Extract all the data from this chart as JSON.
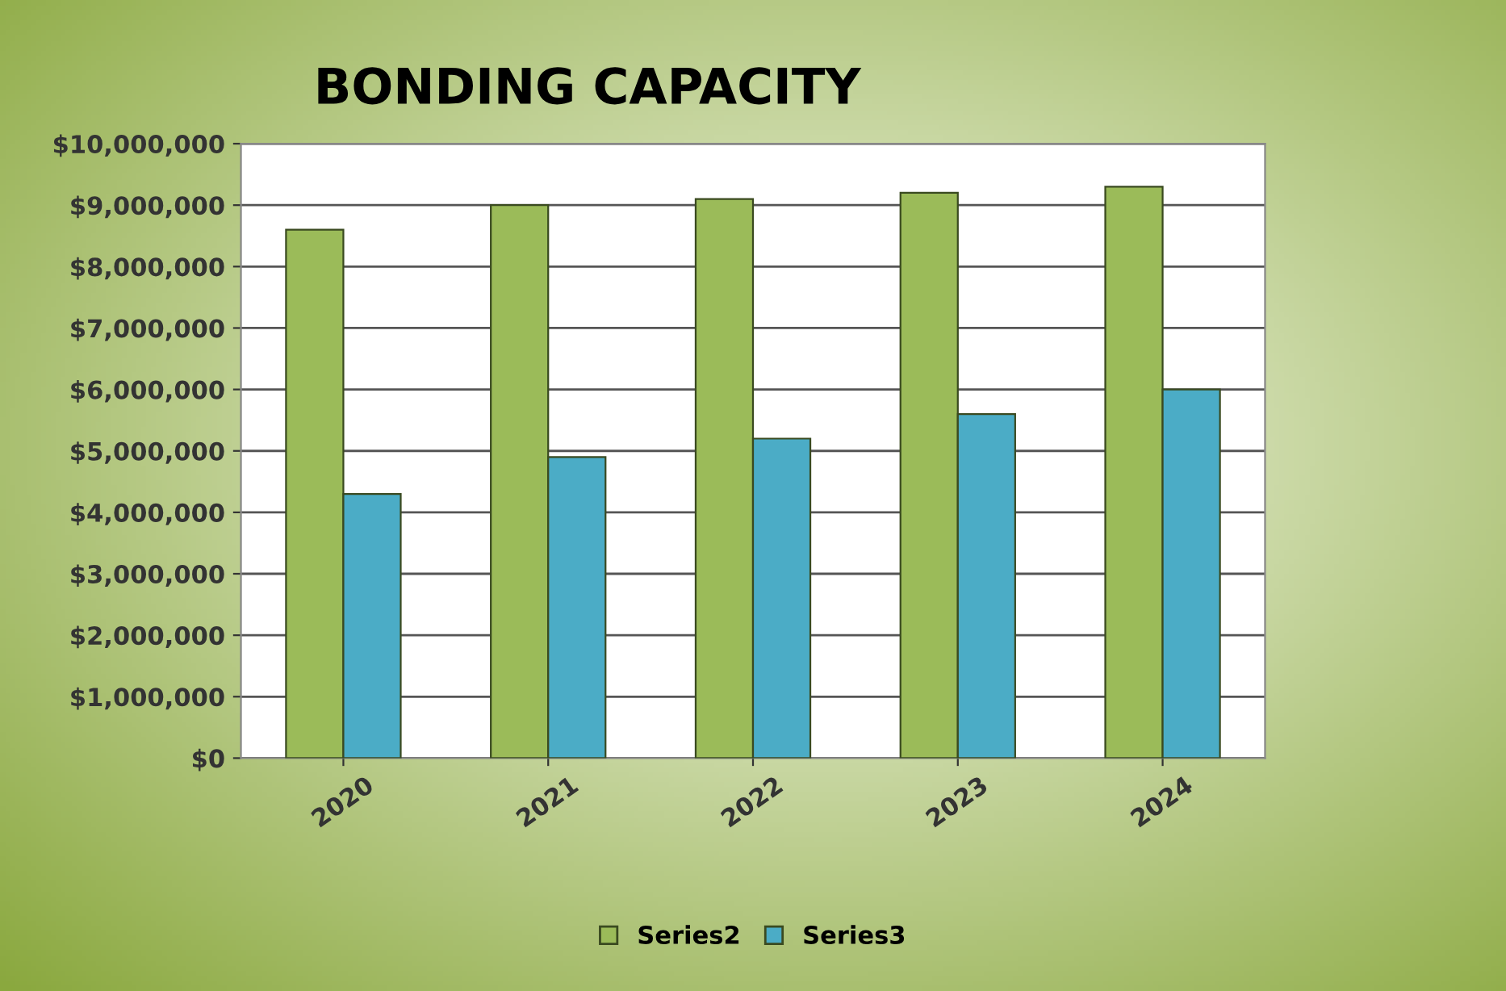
{
  "chart_data": {
    "type": "bar",
    "title": "BONDING CAPACITY",
    "categories": [
      "2020",
      "2021",
      "2022",
      "2023",
      "2024"
    ],
    "series": [
      {
        "name": "Series2",
        "color": "#9bbb59",
        "values": [
          8600000,
          9000000,
          9100000,
          9200000,
          9300000
        ]
      },
      {
        "name": "Series3",
        "color": "#4bacc6",
        "values": [
          4300000,
          4900000,
          5200000,
          5600000,
          6000000
        ]
      }
    ],
    "ylim": [
      0,
      10000000
    ],
    "yticks": [
      {
        "value": 0,
        "label": "$0"
      },
      {
        "value": 1000000,
        "label": "$1,000,000"
      },
      {
        "value": 2000000,
        "label": "$2,000,000"
      },
      {
        "value": 3000000,
        "label": "$3,000,000"
      },
      {
        "value": 4000000,
        "label": "$4,000,000"
      },
      {
        "value": 5000000,
        "label": "$5,000,000"
      },
      {
        "value": 6000000,
        "label": "$6,000,000"
      },
      {
        "value": 7000000,
        "label": "$7,000,000"
      },
      {
        "value": 8000000,
        "label": "$8,000,000"
      },
      {
        "value": 9000000,
        "label": "$9,000,000"
      },
      {
        "value": 10000000,
        "label": "$10,000,000"
      }
    ],
    "grid": "y",
    "legend": "bottom"
  }
}
